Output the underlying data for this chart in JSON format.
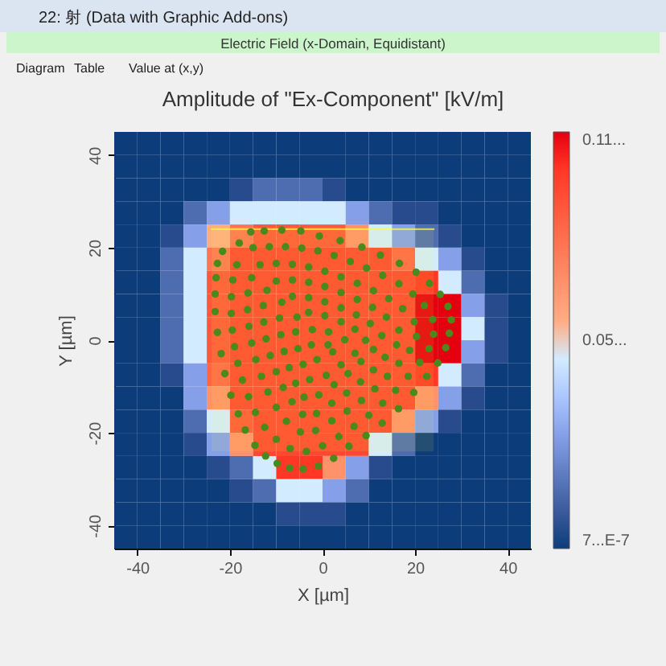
{
  "chart_data": {
    "type": "heatmap",
    "title": "Amplitude of \"Ex-Component\" [kV/m]",
    "annotations": [
      "22: 射 (Data with Graphic Add-ons)",
      "Electric Field (x-Domain, Equidistant)",
      "Diagram",
      "Table",
      "Value at (x,y)"
    ],
    "xlabel": "X [µm]",
    "ylabel": "Y [µm]",
    "xlim": [
      -45,
      45
    ],
    "ylim": [
      -45,
      45
    ],
    "xticks": [
      -40,
      -20,
      0,
      20,
      40
    ],
    "yticks": [
      -40,
      -20,
      0,
      20,
      40
    ],
    "x": [
      -42.5,
      -37.5,
      -32.5,
      -27.5,
      -22.5,
      -17.5,
      -12.5,
      -7.5,
      -2.5,
      2.5,
      7.5,
      12.5,
      17.5,
      22.5,
      27.5,
      32.5,
      37.5,
      42.5
    ],
    "y": [
      42.5,
      37.5,
      32.5,
      27.5,
      22.5,
      17.5,
      12.5,
      7.5,
      2.5,
      -2.5,
      -7.5,
      -12.5,
      -17.5,
      -22.5,
      -27.5,
      -32.5,
      -37.5,
      -42.5
    ],
    "clim": [
      7e-07,
      0.11
    ],
    "cticks": [
      {
        "value": 7e-07,
        "label": "7...E-7"
      },
      {
        "value": 0.055,
        "label": "0.05..."
      },
      {
        "value": 0.11,
        "label": "0.11..."
      }
    ],
    "colors": [
      "#0d3c7a",
      "#ffffff",
      "#e4000f"
    ],
    "cells": [
      [
        7e-07,
        7e-07,
        7e-07,
        7e-07,
        7e-07,
        7e-07,
        7e-07,
        7e-07,
        7e-07,
        7e-07,
        7e-07,
        7e-07,
        7e-07,
        7e-07,
        7e-07,
        7e-07,
        7e-07,
        7e-07
      ],
      [
        7e-07,
        7e-07,
        7e-07,
        7e-07,
        7e-07,
        7e-07,
        7e-07,
        7e-07,
        7e-07,
        7e-07,
        7e-07,
        7e-07,
        7e-07,
        7e-07,
        7e-07,
        7e-07,
        7e-07,
        7e-07
      ],
      [
        7e-07,
        7e-07,
        7e-07,
        7e-07,
        7e-07,
        0.005,
        0.015,
        0.015,
        0.015,
        0.005,
        7e-07,
        7e-07,
        7e-07,
        7e-07,
        7e-07,
        7e-07,
        7e-07,
        7e-07
      ],
      [
        7e-07,
        7e-07,
        7e-07,
        0.015,
        0.03,
        0.05,
        0.05,
        0.05,
        0.05,
        0.05,
        0.03,
        0.015,
        0.005,
        0.005,
        7e-07,
        7e-07,
        7e-07,
        7e-07
      ],
      [
        7e-07,
        7e-07,
        0.005,
        0.03,
        0.06,
        0.08,
        0.09,
        0.09,
        0.09,
        0.09,
        0.07,
        0.05,
        0.03,
        0.015,
        0.005,
        7e-07,
        7e-07,
        7e-07
      ],
      [
        7e-07,
        7e-07,
        0.015,
        0.05,
        0.08,
        0.095,
        0.095,
        0.095,
        0.095,
        0.095,
        0.095,
        0.095,
        0.085,
        0.05,
        0.03,
        0.005,
        7e-07,
        7e-07
      ],
      [
        7e-07,
        7e-07,
        0.015,
        0.05,
        0.09,
        0.095,
        0.095,
        0.095,
        0.095,
        0.095,
        0.095,
        0.095,
        0.095,
        0.1,
        0.05,
        0.015,
        7e-07,
        7e-07
      ],
      [
        7e-07,
        7e-07,
        0.015,
        0.05,
        0.09,
        0.095,
        0.095,
        0.095,
        0.095,
        0.095,
        0.095,
        0.095,
        0.095,
        0.11,
        0.11,
        0.03,
        0.005,
        7e-07
      ],
      [
        7e-07,
        7e-07,
        0.015,
        0.05,
        0.09,
        0.095,
        0.095,
        0.095,
        0.095,
        0.095,
        0.095,
        0.095,
        0.095,
        0.11,
        0.11,
        0.05,
        0.005,
        7e-07
      ],
      [
        7e-07,
        7e-07,
        0.015,
        0.05,
        0.09,
        0.095,
        0.095,
        0.095,
        0.095,
        0.095,
        0.095,
        0.095,
        0.095,
        0.11,
        0.11,
        0.03,
        0.005,
        7e-07
      ],
      [
        7e-07,
        7e-07,
        0.005,
        0.03,
        0.085,
        0.095,
        0.095,
        0.095,
        0.095,
        0.095,
        0.095,
        0.095,
        0.095,
        0.1,
        0.05,
        0.015,
        7e-07,
        7e-07
      ],
      [
        7e-07,
        7e-07,
        7e-07,
        0.03,
        0.07,
        0.095,
        0.095,
        0.095,
        0.095,
        0.095,
        0.095,
        0.095,
        0.095,
        0.07,
        0.03,
        0.005,
        7e-07,
        7e-07
      ],
      [
        7e-07,
        7e-07,
        7e-07,
        0.015,
        0.05,
        0.09,
        0.095,
        0.095,
        0.095,
        0.095,
        0.095,
        0.095,
        0.07,
        0.03,
        0.005,
        7e-07,
        7e-07,
        7e-07
      ],
      [
        7e-07,
        7e-07,
        7e-07,
        0.005,
        0.03,
        0.07,
        0.095,
        0.095,
        0.095,
        0.095,
        0.095,
        0.05,
        0.015,
        7e-07,
        7e-07,
        7e-07,
        7e-07,
        7e-07
      ],
      [
        7e-07,
        7e-07,
        7e-07,
        7e-07,
        0.005,
        0.015,
        0.05,
        0.1,
        0.1,
        0.07,
        0.03,
        0.005,
        7e-07,
        7e-07,
        7e-07,
        7e-07,
        7e-07,
        7e-07
      ],
      [
        7e-07,
        7e-07,
        7e-07,
        7e-07,
        7e-07,
        0.005,
        0.015,
        0.05,
        0.05,
        0.03,
        0.015,
        7e-07,
        7e-07,
        7e-07,
        7e-07,
        7e-07,
        7e-07,
        7e-07
      ],
      [
        7e-07,
        7e-07,
        7e-07,
        7e-07,
        7e-07,
        7e-07,
        7e-07,
        0.005,
        0.005,
        0.005,
        7e-07,
        7e-07,
        7e-07,
        7e-07,
        7e-07,
        7e-07,
        7e-07,
        7e-07
      ],
      [
        7e-07,
        7e-07,
        7e-07,
        7e-07,
        7e-07,
        7e-07,
        7e-07,
        7e-07,
        7e-07,
        7e-07,
        7e-07,
        7e-07,
        7e-07,
        7e-07,
        7e-07,
        7e-07,
        7e-07,
        7e-07
      ]
    ],
    "series": [
      {
        "type": "line",
        "color": "#ffff33",
        "x": [
          -24,
          24
        ],
        "values": [
          24,
          24
        ],
        "lower": [
          -24,
          -24
        ],
        "upper": [
          24,
          24
        ]
      },
      {
        "type": "scatter",
        "color": "#4a8a1c",
        "marker": "circle",
        "x": [
          -15.5,
          -12.6,
          -8.8,
          -4.7,
          -0.7,
          3.8,
          8.5,
          12.5,
          16.6,
          20.2,
          23.1,
          25.4,
          27.1,
          27.8,
          27.4,
          26.6,
          24.9,
          22.5,
          19.7,
          16.4,
          12.9,
          9.4,
          5.7,
          2.4,
          -0.9,
          -4.2,
          -7.1,
          -9.8,
          -12.3,
          -14.6,
          -16.7,
          -18.2,
          -19.8,
          -21.1,
          -21.9,
          -22.7,
          -23.2,
          -23.2,
          -23,
          -22.7,
          -21.6,
          -18,
          -15,
          -11.5,
          -8,
          -4.5,
          -1,
          2.5,
          6,
          9.5,
          13,
          16.5,
          19.5,
          22,
          23.8,
          24,
          23,
          21,
          18.5,
          15.8,
          13,
          10,
          6.8,
          3.5,
          0,
          -3.5,
          -7,
          -10,
          -12.5,
          -14.5,
          -16,
          -17.3,
          -18.3,
          -19,
          -19.5,
          -19.7,
          -19.7,
          -19.4,
          -18.5,
          -13.5,
          -10,
          -6.5,
          -3,
          0.5,
          4,
          7.5,
          11,
          14.3,
          17.3,
          19.8,
          20.3,
          18.8,
          16.5,
          14,
          11.3,
          8.4,
          5.3,
          2,
          -1.5,
          -4.8,
          -7.8,
          -10,
          -11.8,
          -13.2,
          -14.4,
          -15.3,
          -15.9,
          -16.2,
          -16.1,
          -15.3,
          -10,
          -6.5,
          -3,
          0.5,
          4,
          7.5,
          10.8,
          13.8,
          16.5,
          16,
          13.5,
          11,
          8.2,
          5.2,
          2,
          -1.3,
          -4.3,
          -6.6,
          -8.5,
          -10,
          -11.3,
          -12.2,
          -12.7,
          -12.8,
          -12,
          -6.5,
          -3,
          0.5,
          4,
          7.3,
          10.3,
          12.8,
          11,
          8.3,
          5.5,
          2.5,
          -0.8,
          -4,
          -5.8,
          -7.2,
          -8.3,
          -9,
          -9.3,
          -8.8,
          -3,
          0.5,
          4,
          7,
          9.3,
          7,
          4,
          0.8,
          -2.8,
          -4.2,
          -5.3,
          -5.8,
          -5.5,
          -2.2,
          1.3,
          4.8,
          2.2,
          -1.2,
          -2.4,
          1.2
        ],
        "values": [
          23.4,
          23.6,
          23.8,
          23.6,
          22.5,
          21.5,
          20.1,
          18.4,
          16.6,
          14.7,
          12.3,
          9.9,
          7.3,
          4.4,
          1.5,
          -1.6,
          -4.9,
          -7.8,
          -11.3,
          -14.8,
          -17.9,
          -20.6,
          -22.9,
          -25.5,
          -27.2,
          -27.8,
          -27.6,
          -26.6,
          -25,
          -22.7,
          -19.4,
          -15.9,
          -11.9,
          -7.2,
          -2.9,
          1.7,
          6.2,
          10,
          13.5,
          16.6,
          19.2,
          21,
          20,
          20.2,
          20.2,
          19.9,
          19.3,
          18.3,
          17,
          15.6,
          14,
          12.2,
          10,
          7.5,
          4.5,
          1.3,
          -1.8,
          -4.8,
          -7.8,
          -10.8,
          -13.6,
          -16.2,
          -18.6,
          -20.8,
          -22.8,
          -24,
          -23.4,
          -21.4,
          -18.8,
          -15.6,
          -12.2,
          -8.6,
          -5,
          -1.4,
          2.2,
          5.8,
          9.4,
          13,
          16.3,
          16.3,
          16.6,
          16.4,
          15.8,
          14.9,
          13.7,
          12.3,
          10.7,
          9,
          6.8,
          4,
          0.8,
          -2.2,
          -5,
          -7.8,
          -10.5,
          -13,
          -15.3,
          -17.4,
          -19.5,
          -19.8,
          -17.5,
          -14.5,
          -11.2,
          -7.8,
          -4.2,
          -0.6,
          3,
          6.6,
          10.2,
          13.5,
          12.8,
          13,
          12.5,
          11.6,
          10.3,
          8.8,
          7.1,
          5,
          2.2,
          -1,
          -3.7,
          -6.4,
          -9,
          -11.4,
          -13.6,
          -15.8,
          -16,
          -13.3,
          -10.2,
          -6.8,
          -3.3,
          0.3,
          3.9,
          7.5,
          10.8,
          9.5,
          9.2,
          8.3,
          7,
          5.5,
          3.6,
          1,
          -2,
          -4.6,
          -7.2,
          -9.6,
          -11.8,
          -12.3,
          -9.3,
          -5.9,
          -2.4,
          1.2,
          4.8,
          8.2,
          6,
          5.3,
          4,
          2.4,
          0,
          -2.8,
          -5.3,
          -7.6,
          -8.5,
          -5.2,
          -1.8,
          1.8,
          5,
          2.3,
          1.8,
          0.1,
          -2.5,
          -4.2,
          -1,
          -1
        ]
      }
    ]
  }
}
